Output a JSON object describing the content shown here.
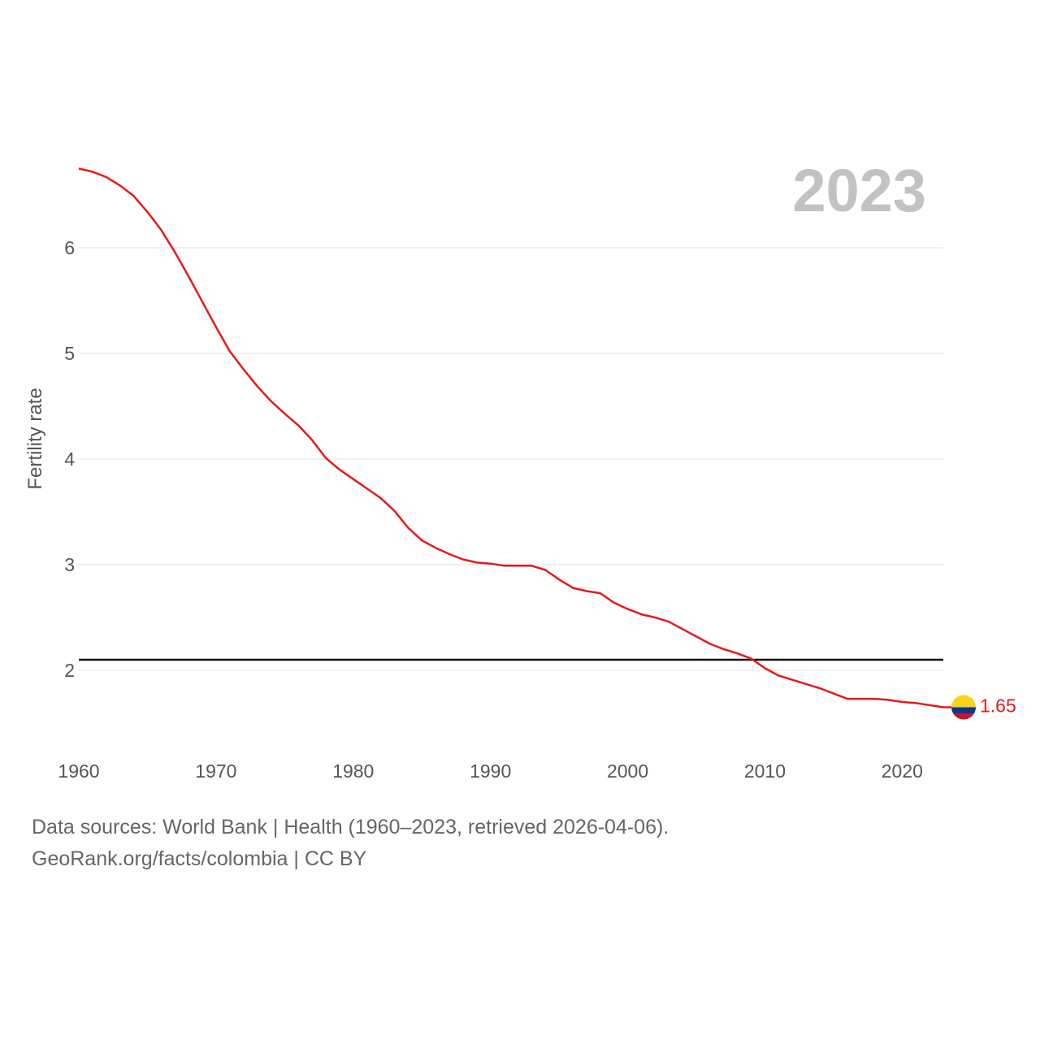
{
  "chart_data": {
    "type": "line",
    "title": "",
    "year_label": "2023",
    "ylabel": "Fertility rate",
    "xlabel": "",
    "xlim": [
      1960,
      2023
    ],
    "ylim": [
      1.3,
      6.9
    ],
    "yticks": [
      2,
      3,
      4,
      5,
      6
    ],
    "xticks": [
      1960,
      1970,
      1980,
      1990,
      2000,
      2010,
      2020
    ],
    "grid": true,
    "line_color": "#e8191a",
    "reference_line": {
      "y": 2.1,
      "color": "#111111"
    },
    "end_label": "1.65",
    "end_marker": "colombia-flag-icon",
    "flag_colors": [
      "#fcd116",
      "#003893",
      "#ce1126"
    ],
    "series": [
      {
        "x": [
          1960,
          1961,
          1962,
          1963,
          1964,
          1965,
          1966,
          1967,
          1968,
          1969,
          1970,
          1971,
          1972,
          1973,
          1974,
          1975,
          1976,
          1977,
          1978,
          1979,
          1980,
          1981,
          1982,
          1983,
          1984,
          1985,
          1986,
          1987,
          1988,
          1989,
          1990,
          1991,
          1992,
          1993,
          1994,
          1995,
          1996,
          1997,
          1998,
          1999,
          2000,
          2001,
          2002,
          2003,
          2004,
          2005,
          2006,
          2007,
          2008,
          2009,
          2010,
          2011,
          2012,
          2013,
          2014,
          2015,
          2016,
          2017,
          2018,
          2019,
          2020,
          2021,
          2022,
          2023
        ],
        "values": [
          6.75,
          6.72,
          6.67,
          6.59,
          6.49,
          6.34,
          6.17,
          5.96,
          5.73,
          5.49,
          5.25,
          5.02,
          4.85,
          4.69,
          4.55,
          4.43,
          4.32,
          4.18,
          4.01,
          3.9,
          3.81,
          3.72,
          3.63,
          3.51,
          3.35,
          3.23,
          3.16,
          3.1,
          3.05,
          3.02,
          3.01,
          2.99,
          2.99,
          2.99,
          2.95,
          2.86,
          2.78,
          2.75,
          2.73,
          2.64,
          2.58,
          2.53,
          2.5,
          2.46,
          2.39,
          2.32,
          2.25,
          2.2,
          2.16,
          2.11,
          2.02,
          1.95,
          1.91,
          1.87,
          1.83,
          1.78,
          1.73,
          1.73,
          1.73,
          1.72,
          1.7,
          1.69,
          1.67,
          1.65
        ]
      }
    ]
  },
  "footer": {
    "sources": "Data sources: World Bank | Health (1960–2023, retrieved 2026-04-06).",
    "credit": "GeoRank.org/facts/colombia | CC BY"
  }
}
